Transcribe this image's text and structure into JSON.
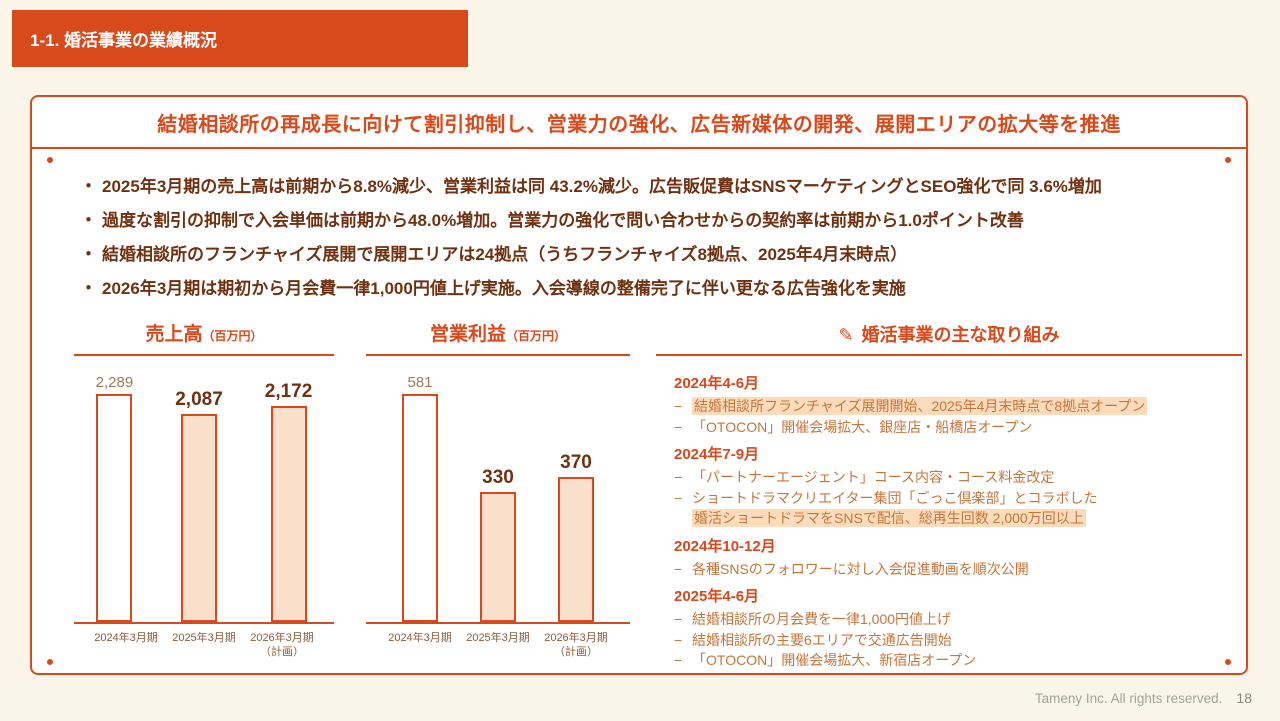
{
  "colors": {
    "background": "#FBF4E8",
    "accent": "#D8491B",
    "dark_text": "#6E3212",
    "list_text": "#C4763C",
    "highlight_bg": "#FADCBB",
    "bar_fill": "#F9E0CC",
    "cat_text": "#8D5B38",
    "muted_value": "#9F7A57",
    "footer_text": "#A5A29A"
  },
  "glyphs": {
    "bullet": "・",
    "dash": "−",
    "pencil": "✎"
  },
  "header": {
    "tab_title": "1-1. 婚活事業の業績概況"
  },
  "headline": "結婚相談所の再成長に向けて割引抑制し、営業力の強化、広告新媒体の開発、展開エリアの拡大等を推進",
  "bullets": [
    "2025年3月期の売上高は前期から8.8%減少、営業利益は同 43.2%減少。広告販促費はSNSマーケティングとSEO強化で同 3.6%増加",
    "過度な割引の抑制で入会単価は前期から48.0%増加。営業力の強化で問い合わせからの契約率は前期から1.0ポイント改善",
    "結婚相談所のフランチャイズ展開で展開エリアは24拠点（うちフランチャイズ8拠点、2025年4月末時点）",
    "2026年3月期は期初から月会費一律1,000円値上げ実施。入会導線の整備完了に伴い更なる広告強化を実施"
  ],
  "chart_data": [
    {
      "type": "bar",
      "title": "売上高",
      "unit_label": "（百万円）",
      "categories": [
        "2024年3月期",
        "2025年3月期",
        "2026年3月期\n（計画）"
      ],
      "values": [
        2289,
        2087,
        2172
      ],
      "value_labels": [
        "2,289",
        "2,087",
        "2,172"
      ],
      "ylim": [
        0,
        2500
      ],
      "grid": false,
      "legend": "none"
    },
    {
      "type": "bar",
      "title": "営業利益",
      "unit_label": "（百万円）",
      "categories": [
        "2024年3月期",
        "2025年3月期",
        "2026年3月期\n（計画）"
      ],
      "values": [
        581,
        330,
        370
      ],
      "value_labels": [
        "581",
        "330",
        "370"
      ],
      "ylim": [
        0,
        650
      ],
      "grid": false,
      "legend": "none"
    }
  ],
  "initiatives": {
    "title": "婚活事業の主な取り組み",
    "groups": [
      {
        "period": "2024年4-6月",
        "items": [
          {
            "lines": [
              {
                "text": "結婚相談所フランチャイズ展開開始、2025年4月末時点で8拠点オープン",
                "highlight": true
              }
            ]
          },
          {
            "lines": [
              {
                "text": "「OTOCON」開催会場拡大、銀座店・船橋店オープン",
                "highlight": false
              }
            ]
          }
        ]
      },
      {
        "period": "2024年7-9月",
        "items": [
          {
            "lines": [
              {
                "text": "「パートナーエージェント」コース内容・コース料金改定",
                "highlight": false
              }
            ]
          },
          {
            "lines": [
              {
                "text": "ショートドラマクリエイター集団「ごっこ倶楽部」とコラボした",
                "highlight": false
              },
              {
                "text": "婚活ショートドラマをSNSで配信、総再生回数 2,000万回以上",
                "highlight": true
              }
            ]
          }
        ]
      },
      {
        "period": "2024年10-12月",
        "items": [
          {
            "lines": [
              {
                "text": "各種SNSのフォロワーに対し入会促進動画を順次公開",
                "highlight": false
              }
            ]
          }
        ]
      },
      {
        "period": "2025年4-6月",
        "items": [
          {
            "lines": [
              {
                "text": "結婚相談所の月会費を一律1,000円値上げ",
                "highlight": false
              }
            ]
          },
          {
            "lines": [
              {
                "text": "結婚相談所の主要6エリアで交通広告開始",
                "highlight": false
              }
            ]
          },
          {
            "lines": [
              {
                "text": "「OTOCON」開催会場拡大、新宿店オープン",
                "highlight": false
              }
            ]
          }
        ]
      }
    ]
  },
  "footer": {
    "copyright": "Tameny Inc. All rights reserved.",
    "page_number": "18"
  }
}
